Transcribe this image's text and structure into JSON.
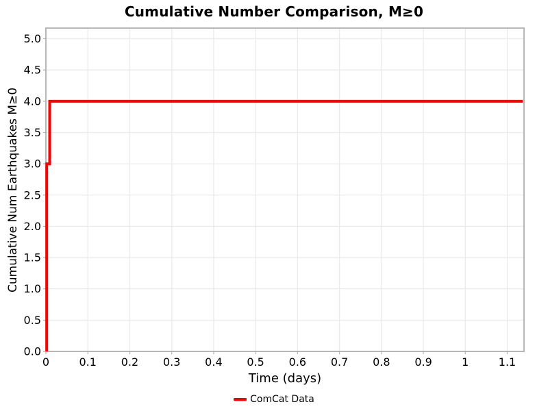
{
  "chart_data": {
    "type": "line",
    "title": "Cumulative Number Comparison, M≥0",
    "xlabel": "Time (days)",
    "ylabel": "Cumulative Num Earthquakes M≥0",
    "xlim": [
      0,
      1.14
    ],
    "ylim": [
      0,
      5.17
    ],
    "grid": true,
    "legend_position": "bottom-center",
    "x_ticks": {
      "values": [
        0,
        0.1,
        0.2,
        0.3,
        0.4,
        0.5,
        0.6,
        0.7,
        0.8,
        0.9,
        1,
        1.1
      ],
      "labels": [
        "0",
        "0.1",
        "0.2",
        "0.3",
        "0.4",
        "0.5",
        "0.6",
        "0.7",
        "0.8",
        "0.9",
        "1",
        "1.1"
      ]
    },
    "y_ticks": {
      "values": [
        0,
        0.5,
        1,
        1.5,
        2,
        2.5,
        3,
        3.5,
        4,
        4.5,
        5
      ],
      "labels": [
        "0.0",
        "0.5",
        "1.0",
        "1.5",
        "2.0",
        "2.5",
        "3.0",
        "3.5",
        "4.0",
        "4.5",
        "5.0"
      ]
    },
    "series": [
      {
        "name": "ComCat Data",
        "color": "#ff0000",
        "line_width": 4,
        "step": true,
        "x": [
          0.002,
          0.002,
          0.009,
          0.009,
          1.137
        ],
        "y": [
          0,
          3,
          3,
          4,
          4
        ]
      }
    ]
  },
  "colors": {
    "background": "#ffffff",
    "grid": "#ebebeb",
    "axis_border": "#b0b0b0",
    "tick": "#b0b0b0",
    "text": "#000000"
  }
}
